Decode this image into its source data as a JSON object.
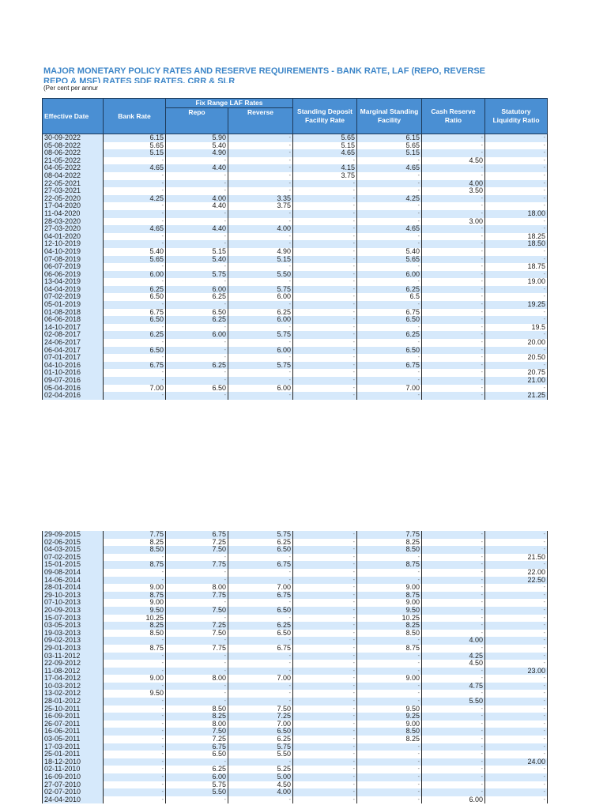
{
  "title": "MAJOR MONETARY POLICY RATES AND RESERVE REQUIREMENTS - BANK RATE, LAF (REPO, REVERSE REPO & MSF) RATES SDF RATES, CRR & SLR",
  "subtitle": "(Per cent per annur",
  "colors": {
    "header": "#4a8fd3",
    "stripe": "#d6e9fb",
    "title": "#3d86c8"
  },
  "headers": {
    "date": "Effective Date",
    "bank": "Bank Rate",
    "laf": "Fix Range LAF Rates",
    "repo": "Repo",
    "reverse": "Reverse",
    "sdf": "Standing Deposit Facility Rate",
    "msf": "Marginal Standing Facility",
    "crr": "Cash Reserve Ratio",
    "slr": "Statutory Liquidity Ratio"
  },
  "rows_top": [
    [
      "30-09-2022",
      "6.15",
      "5.90",
      "-",
      "5.65",
      "6.15",
      "-",
      "-"
    ],
    [
      "05-08-2022",
      "5.65",
      "5.40",
      "-",
      "5.15",
      "5.65",
      "-",
      "-"
    ],
    [
      "08-06-2022",
      "5.15",
      "4.90",
      "-",
      "4.65",
      "5.15",
      "-",
      "-"
    ],
    [
      "21-05-2022",
      "-",
      "-",
      "-",
      "-",
      "-",
      "4.50",
      "-"
    ],
    [
      "04-05-2022",
      "4.65",
      "4.40",
      "-",
      "4.15",
      "4.65",
      "-",
      "-"
    ],
    [
      "08-04-2022",
      "-",
      "-",
      "-",
      "3.75",
      "-",
      "-",
      "-"
    ],
    [
      "22-05-2021",
      "-",
      "-",
      "-",
      "-",
      "-",
      "4.00",
      "-"
    ],
    [
      "27-03-2021",
      "-",
      "-",
      "-",
      "-",
      "-",
      "3.50",
      "-"
    ],
    [
      "22-05-2020",
      "4.25",
      "4.00",
      "3.35",
      "-",
      "4.25",
      "-",
      "-"
    ],
    [
      "17-04-2020",
      "-",
      "4.40",
      "3.75",
      "-",
      "-",
      "-",
      "-"
    ],
    [
      "11-04-2020",
      "-",
      "-",
      "-",
      "-",
      "-",
      "-",
      "18.00"
    ],
    [
      "28-03-2020",
      "-",
      "-",
      "-",
      "-",
      "-",
      "3.00",
      "-"
    ],
    [
      "27-03-2020",
      "4.65",
      "4.40",
      "4.00",
      "-",
      "4.65",
      "-",
      "-"
    ],
    [
      "04-01-2020",
      "-",
      "-",
      "-",
      "-",
      "-",
      "-",
      "18.25"
    ],
    [
      "12-10-2019",
      "-",
      "-",
      "-",
      "-",
      "-",
      "-",
      "18.50"
    ],
    [
      "04-10-2019",
      "5.40",
      "5.15",
      "4.90",
      "-",
      "5.40",
      "-",
      "-"
    ],
    [
      "07-08-2019",
      "5.65",
      "5.40",
      "5.15",
      "-",
      "5.65",
      "-",
      "-"
    ],
    [
      "06-07-2019",
      "-",
      "-",
      "-",
      "-",
      "-",
      "-",
      "18.75"
    ],
    [
      "06-06-2019",
      "6.00",
      "5.75",
      "5.50",
      "-",
      "6.00",
      "-",
      "-"
    ],
    [
      "13-04-2019",
      "-",
      "-",
      "-",
      "-",
      "-",
      "-",
      "19.00"
    ],
    [
      "04-04-2019",
      "6.25",
      "6.00",
      "5.75",
      "-",
      "6.25",
      "-",
      "-"
    ],
    [
      "07-02-2019",
      "6.50",
      "6.25",
      "6.00",
      "-",
      "6.5",
      "-",
      "-"
    ],
    [
      "05-01-2019",
      "-",
      "-",
      "-",
      "-",
      "-",
      "-",
      "19.25"
    ],
    [
      "01-08-2018",
      "6.75",
      "6.50",
      "6.25",
      "-",
      "6.75",
      "-",
      "-"
    ],
    [
      "06-06-2018",
      "6.50",
      "6.25",
      "6.00",
      "-",
      "6.50",
      "-",
      "-"
    ],
    [
      "14-10-2017",
      "-",
      "-",
      "-",
      "-",
      "-",
      "-",
      "19.5"
    ],
    [
      "02-08-2017",
      "6.25",
      "6.00",
      "5.75",
      "-",
      "6.25",
      "-",
      "-"
    ],
    [
      "24-06-2017",
      "-",
      "-",
      "-",
      "-",
      "-",
      "-",
      "20.00"
    ],
    [
      "06-04-2017",
      "6.50",
      "-",
      "6.00",
      "-",
      "6.50",
      "-",
      "-"
    ],
    [
      "07-01-2017",
      "-",
      "-",
      "-",
      "-",
      "-",
      "-",
      "20.50"
    ],
    [
      "04-10-2016",
      "6.75",
      "6.25",
      "5.75",
      "-",
      "6.75",
      "-",
      "-"
    ],
    [
      "01-10-2016",
      "-",
      "-",
      "-",
      "-",
      "-",
      "-",
      "20.75"
    ],
    [
      "09-07-2016",
      "-",
      "-",
      "-",
      "-",
      "-",
      "-",
      "21.00"
    ],
    [
      "05-04-2016",
      "7.00",
      "6.50",
      "6.00",
      "-",
      "7.00",
      "-",
      "-"
    ],
    [
      "02-04-2016",
      "-",
      "-",
      "-",
      "-",
      "-",
      "-",
      "21.25"
    ]
  ],
  "rows_bottom": [
    [
      "29-09-2015",
      "7.75",
      "6.75",
      "5.75",
      "-",
      "7.75",
      "-",
      "-"
    ],
    [
      "02-06-2015",
      "8.25",
      "7.25",
      "6.25",
      "-",
      "8.25",
      "-",
      "-"
    ],
    [
      "04-03-2015",
      "8.50",
      "7.50",
      "6.50",
      "-",
      "8.50",
      "-",
      "-"
    ],
    [
      "07-02-2015",
      "-",
      "-",
      "-",
      "-",
      "-",
      "-",
      "21.50"
    ],
    [
      "15-01-2015",
      "8.75",
      "7.75",
      "6.75",
      "-",
      "8.75",
      "-",
      "-"
    ],
    [
      "09-08-2014",
      "-",
      "-",
      "-",
      "-",
      "-",
      "-",
      "22.00"
    ],
    [
      "14-06-2014",
      "-",
      "-",
      "-",
      "-",
      "-",
      "-",
      "22.50"
    ],
    [
      "28-01-2014",
      "9.00",
      "8.00",
      "7.00",
      "-",
      "9.00",
      "-",
      "-"
    ],
    [
      "29-10-2013",
      "8.75",
      "7.75",
      "6.75",
      "-",
      "8.75",
      "-",
      "-"
    ],
    [
      "07-10-2013",
      "9.00",
      "-",
      "-",
      "-",
      "9.00",
      "-",
      "-"
    ],
    [
      "20-09-2013",
      "9.50",
      "7.50",
      "6.50",
      "-",
      "9.50",
      "-",
      "-"
    ],
    [
      "15-07-2013",
      "10.25",
      "-",
      "-",
      "-",
      "10.25",
      "-",
      "-"
    ],
    [
      "03-05-2013",
      "8.25",
      "7.25",
      "6.25",
      "-",
      "8.25",
      "-",
      "-"
    ],
    [
      "19-03-2013",
      "8.50",
      "7.50",
      "6.50",
      "-",
      "8.50",
      "-",
      "-"
    ],
    [
      "09-02-2013",
      "-",
      "-",
      "-",
      "-",
      "-",
      "4.00",
      "-"
    ],
    [
      "29-01-2013",
      "8.75",
      "7.75",
      "6.75",
      "-",
      "8.75",
      "-",
      "-"
    ],
    [
      "03-11-2012",
      "-",
      "-",
      "-",
      "-",
      "-",
      "4.25",
      "-"
    ],
    [
      "22-09-2012",
      "-",
      "-",
      "-",
      "-",
      "-",
      "4.50",
      "-"
    ],
    [
      "11-08-2012",
      "-",
      "-",
      "-",
      "-",
      "-",
      "-",
      "23.00"
    ],
    [
      "17-04-2012",
      "9.00",
      "8.00",
      "7.00",
      "-",
      "9.00",
      "-",
      "-"
    ],
    [
      "10-03-2012",
      "-",
      "-",
      "-",
      "-",
      "-",
      "4.75",
      "-"
    ],
    [
      "13-02-2012",
      "9.50",
      "-",
      "-",
      "-",
      "-",
      "-",
      "-"
    ],
    [
      "28-01-2012",
      "-",
      "-",
      "-",
      "-",
      "-",
      "5.50",
      "-"
    ],
    [
      "25-10-2011",
      "-",
      "8.50",
      "7.50",
      "-",
      "9.50",
      "-",
      "-"
    ],
    [
      "16-09-2011",
      "-",
      "8.25",
      "7.25",
      "-",
      "9.25",
      "-",
      "-"
    ],
    [
      "26-07-2011",
      "-",
      "8.00",
      "7.00",
      "-",
      "9.00",
      "-",
      "-"
    ],
    [
      "16-06-2011",
      "-",
      "7.50",
      "6.50",
      "-",
      "8.50",
      "-",
      "-"
    ],
    [
      "03-05-2011",
      "-",
      "7.25",
      "6.25",
      "-",
      "8.25",
      "-",
      "-"
    ],
    [
      "17-03-2011",
      "-",
      "6.75",
      "5.75",
      "-",
      "-",
      "-",
      "-"
    ],
    [
      "25-01-2011",
      "-",
      "6.50",
      "5.50",
      "-",
      "-",
      "-",
      "-"
    ],
    [
      "18-12-2010",
      "-",
      "-",
      "-",
      "-",
      "-",
      "-",
      "24.00"
    ],
    [
      "02-11-2010",
      "-",
      "6.25",
      "5.25",
      "-",
      "-",
      "-",
      "-"
    ],
    [
      "16-09-2010",
      "-",
      "6.00",
      "5.00",
      "-",
      "-",
      "-",
      "-"
    ],
    [
      "27-07-2010",
      "-",
      "5.75",
      "4.50",
      "-",
      "-",
      "-",
      "-"
    ],
    [
      "02-07-2010",
      "-",
      "5.50",
      "4.00",
      "-",
      "-",
      "-",
      "-"
    ],
    [
      "24-04-2010",
      "-",
      "-",
      "-",
      "-",
      "-",
      "6.00",
      "-"
    ]
  ]
}
